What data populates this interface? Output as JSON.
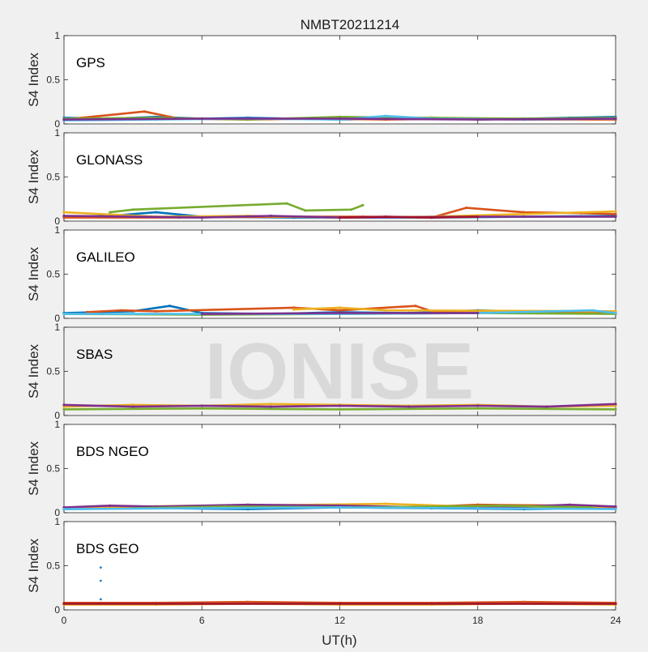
{
  "chart_data": {
    "type": "scatter",
    "title": "NMBT20211214",
    "xlabel": "UT(h)",
    "ylabel": "S4 Index",
    "xlim": [
      0,
      24
    ],
    "ylim": [
      0,
      1
    ],
    "xticks": [
      "0",
      "6",
      "12",
      "18",
      "24"
    ],
    "yticks": [
      "0",
      "0.5",
      "1"
    ],
    "watermark": "IONISE",
    "colors": [
      "#0072BD",
      "#D95319",
      "#EDB120",
      "#7E2F8E",
      "#77AC30",
      "#4DBEEE",
      "#A2142F"
    ],
    "panels": [
      {
        "name": "GPS",
        "series": [
          {
            "color": "#0072BD",
            "x": [
              0,
              2,
              4,
              6,
              8,
              10,
              12,
              14,
              16,
              18,
              20,
              22,
              24
            ],
            "y": [
              0.07,
              0.06,
              0.08,
              0.06,
              0.07,
              0.06,
              0.05,
              0.06,
              0.07,
              0.05,
              0.06,
              0.07,
              0.08
            ]
          },
          {
            "color": "#D95319",
            "x": [
              0,
              3.5,
              5,
              8,
              11,
              14,
              17,
              20,
              24
            ],
            "y": [
              0.05,
              0.14,
              0.06,
              0.05,
              0.06,
              0.05,
              0.06,
              0.05,
              0.05
            ]
          },
          {
            "color": "#77AC30",
            "x": [
              0,
              4,
              8,
              12,
              16,
              20,
              24
            ],
            "y": [
              0.06,
              0.07,
              0.05,
              0.08,
              0.07,
              0.06,
              0.07
            ]
          },
          {
            "color": "#4DBEEE",
            "x": [
              0,
              4,
              8,
              12,
              14,
              16,
              20,
              24
            ],
            "y": [
              0.04,
              0.05,
              0.06,
              0.05,
              0.09,
              0.06,
              0.05,
              0.06
            ]
          },
          {
            "color": "#7E2F8E",
            "x": [
              0,
              6,
              12,
              18,
              24
            ],
            "y": [
              0.05,
              0.06,
              0.06,
              0.05,
              0.06
            ]
          }
        ]
      },
      {
        "name": "GLONASS",
        "series": [
          {
            "color": "#0072BD",
            "x": [
              0,
              2,
              4,
              6,
              10,
              12,
              16,
              20,
              24
            ],
            "y": [
              0.05,
              0.06,
              0.1,
              0.05,
              0.04,
              0.04,
              0.04,
              0.05,
              0.06
            ]
          },
          {
            "color": "#D95319",
            "x": [
              0,
              5,
              10,
              13,
              16,
              17.5,
              20,
              22.5,
              24
            ],
            "y": [
              0.04,
              0.04,
              0.05,
              0.05,
              0.04,
              0.15,
              0.1,
              0.09,
              0.08
            ]
          },
          {
            "color": "#EDB120",
            "x": [
              0,
              4,
              8,
              12,
              16,
              20,
              24
            ],
            "y": [
              0.1,
              0.05,
              0.06,
              0.04,
              0.05,
              0.08,
              0.11
            ]
          },
          {
            "color": "#77AC30",
            "x": [
              2,
              3,
              9.7,
              10.5,
              12.5,
              13
            ],
            "y": [
              0.1,
              0.13,
              0.2,
              0.12,
              0.13,
              0.18
            ]
          },
          {
            "color": "#7E2F8E",
            "x": [
              0,
              6,
              9,
              12,
              18,
              24
            ],
            "y": [
              0.06,
              0.04,
              0.06,
              0.04,
              0.05,
              0.05
            ]
          },
          {
            "color": "#A2142F",
            "x": [
              12,
              14,
              16,
              18
            ],
            "y": [
              0.04,
              0.05,
              0.04,
              0.05
            ]
          }
        ]
      },
      {
        "name": "GALILEO",
        "series": [
          {
            "color": "#0072BD",
            "x": [
              0,
              3,
              4.6,
              6,
              9,
              12,
              15,
              18,
              21,
              24
            ],
            "y": [
              0.06,
              0.08,
              0.14,
              0.06,
              0.05,
              0.07,
              0.06,
              0.09,
              0.07,
              0.06
            ]
          },
          {
            "color": "#D95319",
            "x": [
              1,
              2.5,
              4,
              10,
              12,
              15.3,
              16,
              24
            ],
            "y": [
              0.07,
              0.09,
              0.08,
              0.12,
              0.09,
              0.14,
              0.08,
              0.07
            ]
          },
          {
            "color": "#EDB120",
            "x": [
              10,
              12,
              14,
              24
            ],
            "y": [
              0.1,
              0.12,
              0.09,
              0.08
            ]
          },
          {
            "color": "#77AC30",
            "x": [
              0,
              6,
              12,
              18,
              24
            ],
            "y": [
              0.05,
              0.04,
              0.05,
              0.06,
              0.05
            ]
          },
          {
            "color": "#4DBEEE",
            "x": [
              0,
              6,
              12,
              18,
              23,
              24
            ],
            "y": [
              0.05,
              0.05,
              0.05,
              0.06,
              0.09,
              0.06
            ]
          },
          {
            "color": "#7E2F8E",
            "x": [
              6,
              12,
              18
            ],
            "y": [
              0.05,
              0.06,
              0.06
            ]
          }
        ]
      },
      {
        "name": "SBAS",
        "series": [
          {
            "color": "#EDB120",
            "x": [
              0,
              3,
              6,
              9,
              12,
              15,
              18,
              21,
              24
            ],
            "y": [
              0.1,
              0.12,
              0.11,
              0.13,
              0.12,
              0.11,
              0.12,
              0.1,
              0.11
            ]
          },
          {
            "color": "#7E2F8E",
            "x": [
              0,
              3,
              6,
              9,
              12,
              15,
              18,
              21,
              24
            ],
            "y": [
              0.12,
              0.1,
              0.11,
              0.1,
              0.11,
              0.1,
              0.11,
              0.1,
              0.13
            ]
          },
          {
            "color": "#77AC30",
            "x": [
              0,
              6,
              12,
              18,
              24
            ],
            "y": [
              0.07,
              0.08,
              0.07,
              0.08,
              0.07
            ]
          }
        ]
      },
      {
        "name": "BDS NGEO",
        "series": [
          {
            "color": "#0072BD",
            "x": [
              0,
              4,
              8,
              12,
              16,
              20,
              24
            ],
            "y": [
              0.04,
              0.05,
              0.04,
              0.06,
              0.05,
              0.04,
              0.05
            ]
          },
          {
            "color": "#D95319",
            "x": [
              0,
              5,
              10,
              15,
              18,
              22,
              24
            ],
            "y": [
              0.05,
              0.07,
              0.08,
              0.06,
              0.09,
              0.08,
              0.06
            ]
          },
          {
            "color": "#EDB120",
            "x": [
              0,
              6,
              11,
              14,
              19,
              24
            ],
            "y": [
              0.06,
              0.08,
              0.09,
              0.1,
              0.06,
              0.07
            ]
          },
          {
            "color": "#7E2F8E",
            "x": [
              0,
              2,
              4,
              8,
              12,
              16,
              20,
              22,
              24
            ],
            "y": [
              0.06,
              0.08,
              0.07,
              0.09,
              0.08,
              0.06,
              0.07,
              0.09,
              0.07
            ]
          },
          {
            "color": "#77AC30",
            "x": [
              3,
              7,
              13,
              19,
              23
            ],
            "y": [
              0.05,
              0.07,
              0.06,
              0.08,
              0.06
            ]
          },
          {
            "color": "#4DBEEE",
            "x": [
              0,
              6,
              12,
              18,
              24
            ],
            "y": [
              0.04,
              0.05,
              0.06,
              0.05,
              0.04
            ]
          }
        ]
      },
      {
        "name": "BDS GEO",
        "series": [
          {
            "color": "#D95319",
            "x": [
              0,
              4,
              8,
              12,
              16,
              20,
              24
            ],
            "y": [
              0.08,
              0.08,
              0.09,
              0.08,
              0.08,
              0.09,
              0.08
            ]
          },
          {
            "color": "#EDB120",
            "x": [
              0,
              4,
              8,
              12,
              16,
              20,
              24
            ],
            "y": [
              0.06,
              0.06,
              0.07,
              0.06,
              0.06,
              0.07,
              0.06
            ]
          },
          {
            "color": "#A2142F",
            "x": [
              0,
              6,
              12,
              18,
              24
            ],
            "y": [
              0.07,
              0.07,
              0.07,
              0.07,
              0.07
            ]
          },
          {
            "color": "#0072BD",
            "x": [
              1.6,
              1.6,
              1.6
            ],
            "y": [
              0.48,
              0.33,
              0.12
            ],
            "points_only": true
          }
        ]
      }
    ]
  }
}
